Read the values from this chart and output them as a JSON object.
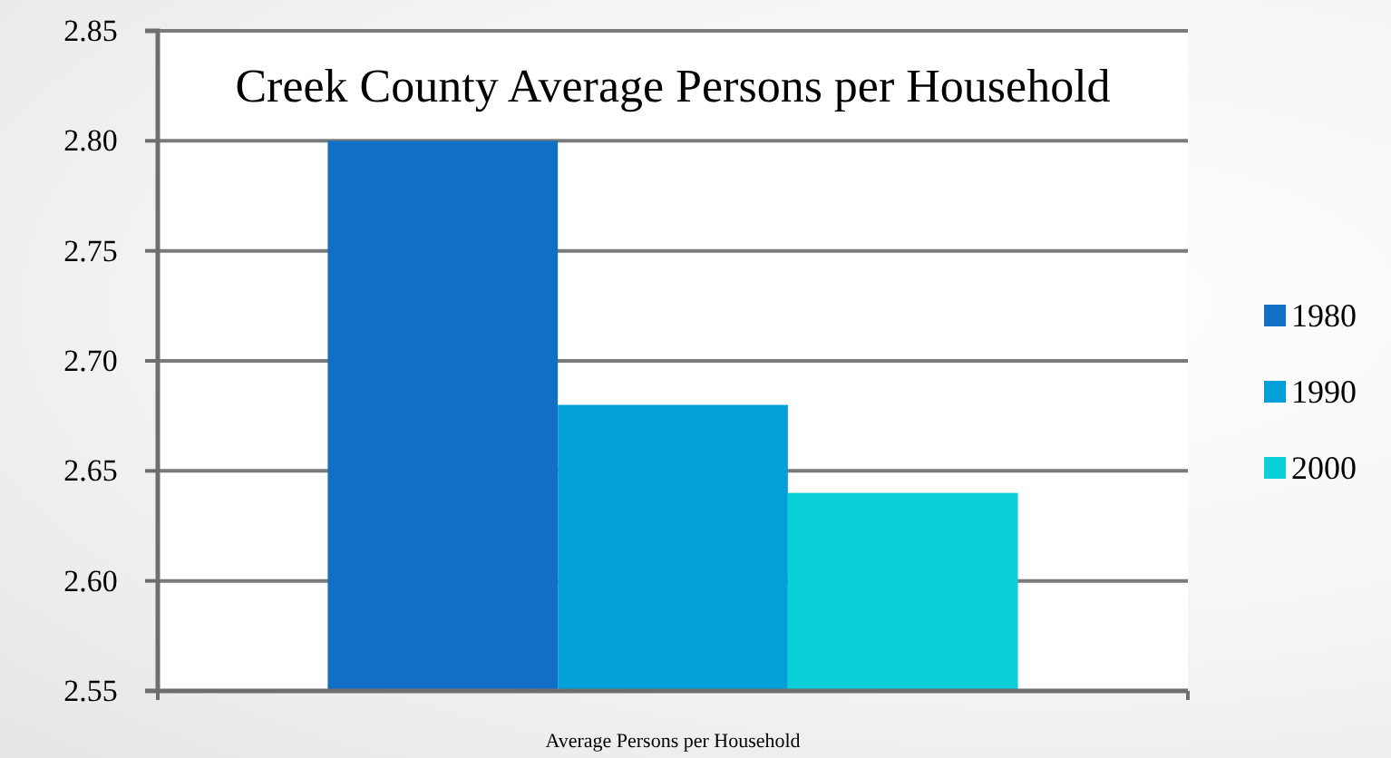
{
  "chart_data": {
    "type": "bar",
    "title": "Creek County Average Persons per Household",
    "categories": [
      "Average Persons per Household"
    ],
    "series": [
      {
        "name": "1980",
        "color": "#126fc6",
        "values": [
          2.8
        ]
      },
      {
        "name": "1990",
        "color": "#039fd8",
        "values": [
          2.68
        ]
      },
      {
        "name": "2000",
        "color": "#0bd0d9",
        "values": [
          2.64
        ]
      }
    ],
    "ylim": [
      2.55,
      2.85
    ],
    "yticks": [
      2.55,
      {
        "value": 2.6,
        "label": "2.60"
      },
      2.65,
      {
        "value": 2.7,
        "label": "2.70"
      },
      2.75,
      {
        "value": 2.8,
        "label": "2.80"
      },
      2.85
    ],
    "grid": "y",
    "legend": "right"
  }
}
